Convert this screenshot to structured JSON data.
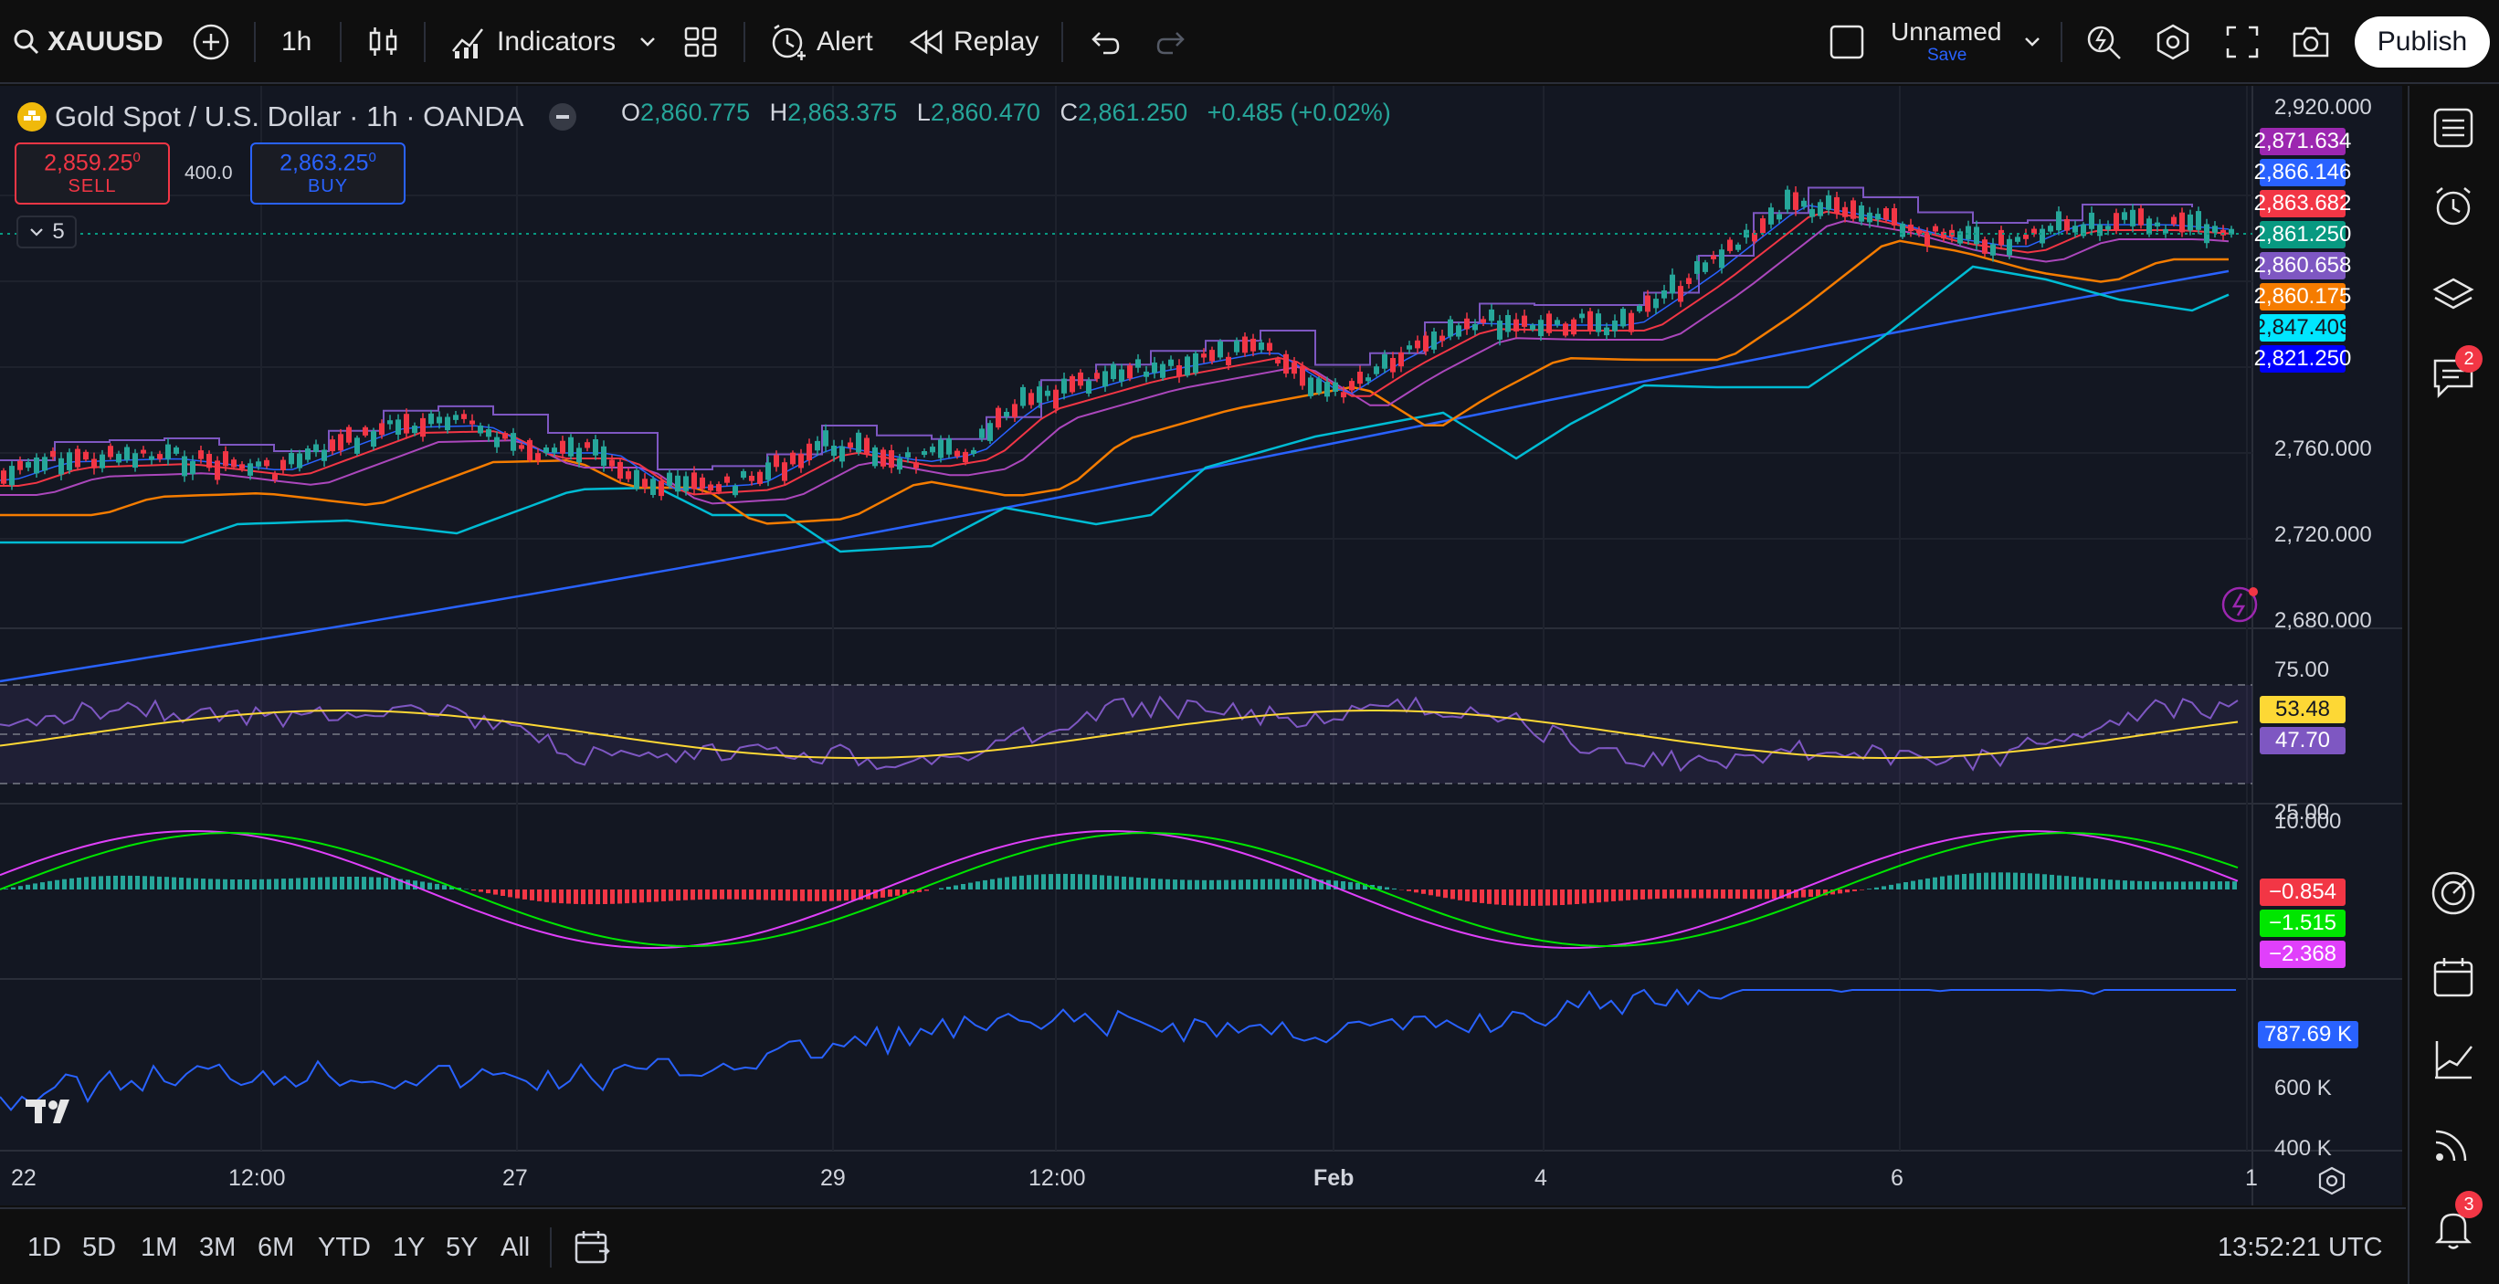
{
  "toolbar": {
    "symbol": "XAUUSD",
    "interval": "1h",
    "indicators_label": "Indicators",
    "alert_label": "Alert",
    "replay_label": "Replay",
    "layout_name": "Unnamed",
    "save_label": "Save",
    "publish_label": "Publish"
  },
  "legend": {
    "title": "Gold Spot / U.S. Dollar · 1h · OANDA",
    "o_key": "O",
    "o_val": "2,860.775",
    "h_key": "H",
    "h_val": "2,863.375",
    "l_key": "L",
    "l_val": "2,860.470",
    "c_key": "C",
    "c_val": "2,861.250",
    "change": "+0.485 (+0.02%)"
  },
  "trade": {
    "sell_price": "2,859.25",
    "sell_sup": "0",
    "sell_label": "SELL",
    "spread": "400.0",
    "buy_price": "2,863.25",
    "buy_sup": "0",
    "buy_label": "BUY",
    "collapsed_count": "5"
  },
  "price_axis": [
    "2,920.000",
    "2,760.000",
    "2,720.000",
    "2,680.000"
  ],
  "price_labels": [
    {
      "value": "2,871.634",
      "color": "#9c27b0"
    },
    {
      "value": "2,866.146",
      "color": "#2962ff"
    },
    {
      "value": "2,863.682",
      "color": "#f23645"
    },
    {
      "value": "2,861.250",
      "color": "#089981"
    },
    {
      "value": "2,860.658",
      "color": "#7e57c2"
    },
    {
      "value": "2,860.175",
      "color": "#f57c00"
    },
    {
      "value": "2,847.409",
      "color": "#00e5ff",
      "text_color": "#131722"
    },
    {
      "value": "2,821.250",
      "color": "#0000ff"
    }
  ],
  "rsi": {
    "axis": [
      "75.00",
      "25.00"
    ],
    "labels": [
      {
        "value": "53.48",
        "color": "#fdd835",
        "text_color": "#131722"
      },
      {
        "value": "47.70",
        "color": "#7e57c2"
      }
    ]
  },
  "macd": {
    "axis": [
      "10.000"
    ],
    "labels": [
      {
        "value": "−0.854",
        "color": "#f23645"
      },
      {
        "value": "−1.515",
        "color": "#00e600"
      },
      {
        "value": "−2.368",
        "color": "#e040fb"
      }
    ]
  },
  "volume": {
    "axis": [
      "600 K",
      "400 K"
    ],
    "label": {
      "value": "787.69 K",
      "color": "#2962ff"
    }
  },
  "time_axis": [
    "22",
    "12:00",
    "27",
    "29",
    "12:00",
    "Feb",
    "4",
    "6",
    "1"
  ],
  "timeframes": [
    "1D",
    "5D",
    "1M",
    "3M",
    "6M",
    "YTD",
    "1Y",
    "5Y",
    "All"
  ],
  "clock": "13:52:21 UTC",
  "badges": {
    "chat": "2",
    "notifications": "3"
  },
  "colors": {
    "bg": "#131722",
    "up": "#26a69a",
    "down": "#f23645",
    "accent": "#2962ff"
  },
  "icons": [
    "search-icon",
    "plus-circle-icon",
    "candles-icon",
    "indicators-icon",
    "layout-grid-icon",
    "alarm-clock-icon",
    "replay-icon",
    "undo-icon",
    "redo-icon",
    "quick-search-icon",
    "settings-icon",
    "fullscreen-icon",
    "camera-icon"
  ]
}
